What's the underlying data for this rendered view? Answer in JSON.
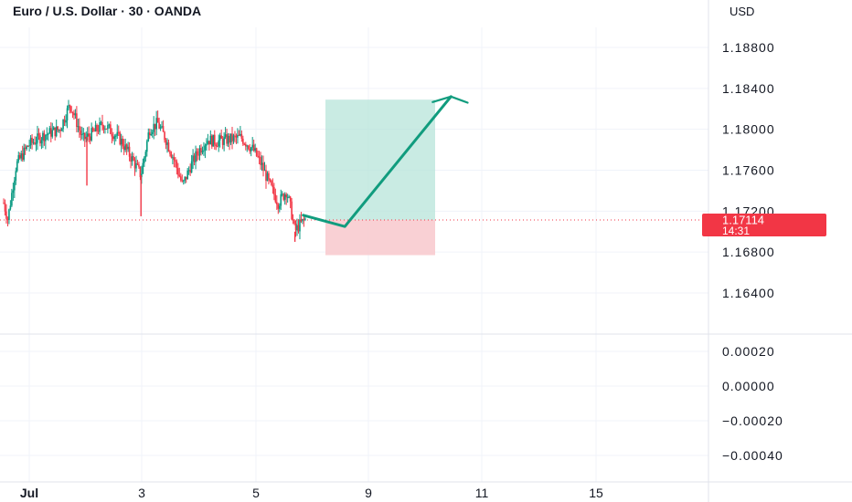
{
  "header": {
    "title": "Euro / U.S. Dollar · 30 · OANDA",
    "currency": "USD"
  },
  "price_badge": {
    "price": "1.17114",
    "countdown": "14:31",
    "color": "#f23645"
  },
  "colors": {
    "up": "#089981",
    "down": "#f23645",
    "profit_zone": "#b7e4da",
    "loss_zone": "#f8c8cc",
    "arrow": "#119c7e",
    "grid": "#f0f3fa",
    "axis_text": "#131722"
  },
  "chart_data": [
    {
      "type": "candlestick",
      "title": "Euro / U.S. Dollar · 30 · OANDA",
      "ylim": [
        1.1625,
        1.1905
      ],
      "y_ticks": [
        "1.18800",
        "1.18400",
        "1.18000",
        "1.17600",
        "1.17200",
        "1.16800",
        "1.16400"
      ],
      "y_tick_values": [
        1.188,
        1.184,
        1.18,
        1.176,
        1.172,
        1.168,
        1.164
      ],
      "x_ticks": [
        "Jul",
        "3",
        "5",
        "9",
        "11",
        "15"
      ],
      "current_price": 1.17114,
      "price_path": [
        {
          "t": 0,
          "p": 1.1728
        },
        {
          "t": 0.02,
          "p": 1.1712
        },
        {
          "t": 0.06,
          "p": 1.1765
        },
        {
          "t": 0.12,
          "p": 1.1785
        },
        {
          "t": 0.2,
          "p": 1.1795
        },
        {
          "t": 0.27,
          "p": 1.18
        },
        {
          "t": 0.32,
          "p": 1.1825
        },
        {
          "t": 0.38,
          "p": 1.179
        },
        {
          "t": 0.42,
          "p": 1.1795
        },
        {
          "t": 0.48,
          "p": 1.1805
        },
        {
          "t": 0.56,
          "p": 1.179
        },
        {
          "t": 0.62,
          "p": 1.177
        },
        {
          "t": 0.66,
          "p": 1.1755
        },
        {
          "t": 0.7,
          "p": 1.18
        },
        {
          "t": 0.74,
          "p": 1.1806
        },
        {
          "t": 0.78,
          "p": 1.179
        },
        {
          "t": 0.82,
          "p": 1.177
        },
        {
          "t": 0.86,
          "p": 1.1745
        },
        {
          "t": 0.9,
          "p": 1.1765
        },
        {
          "t": 0.94,
          "p": 1.178
        },
        {
          "t": 0.98,
          "p": 1.179
        },
        {
          "t": 1.02,
          "p": 1.1788
        },
        {
          "t": 1.08,
          "p": 1.179
        },
        {
          "t": 1.14,
          "p": 1.1792
        },
        {
          "t": 1.2,
          "p": 1.178
        },
        {
          "t": 1.24,
          "p": 1.1765
        },
        {
          "t": 1.28,
          "p": 1.1745
        },
        {
          "t": 1.32,
          "p": 1.1728
        },
        {
          "t": 1.36,
          "p": 1.174
        },
        {
          "t": 1.38,
          "p": 1.1722
        },
        {
          "t": 1.4,
          "p": 1.17
        },
        {
          "t": 1.42,
          "p": 1.1706
        },
        {
          "t": 1.45,
          "p": 1.1712
        }
      ],
      "spikes": [
        {
          "t": 0.4,
          "low": 1.1745
        },
        {
          "t": 0.66,
          "low": 1.1715
        },
        {
          "t": 1.4,
          "low": 1.169
        }
      ],
      "position": {
        "type": "long",
        "entry": 1.17114,
        "target": 1.1829,
        "stop": 1.1677
      },
      "projection": [
        {
          "t": 1.44,
          "p": 1.1716
        },
        {
          "t": 1.64,
          "p": 1.1705
        },
        {
          "t": 2.15,
          "p": 1.1832
        },
        {
          "t": 2.23,
          "p": 1.1826
        }
      ]
    },
    {
      "type": "line",
      "title": "",
      "ylim": [
        -0.00045,
        0.00027
      ],
      "y_ticks": [
        "0.00020",
        "0.00000",
        "−0.00020",
        "−0.00040"
      ],
      "y_tick_values": [
        0.0002,
        0.0,
        -0.0002,
        -0.0004
      ],
      "series": []
    }
  ]
}
